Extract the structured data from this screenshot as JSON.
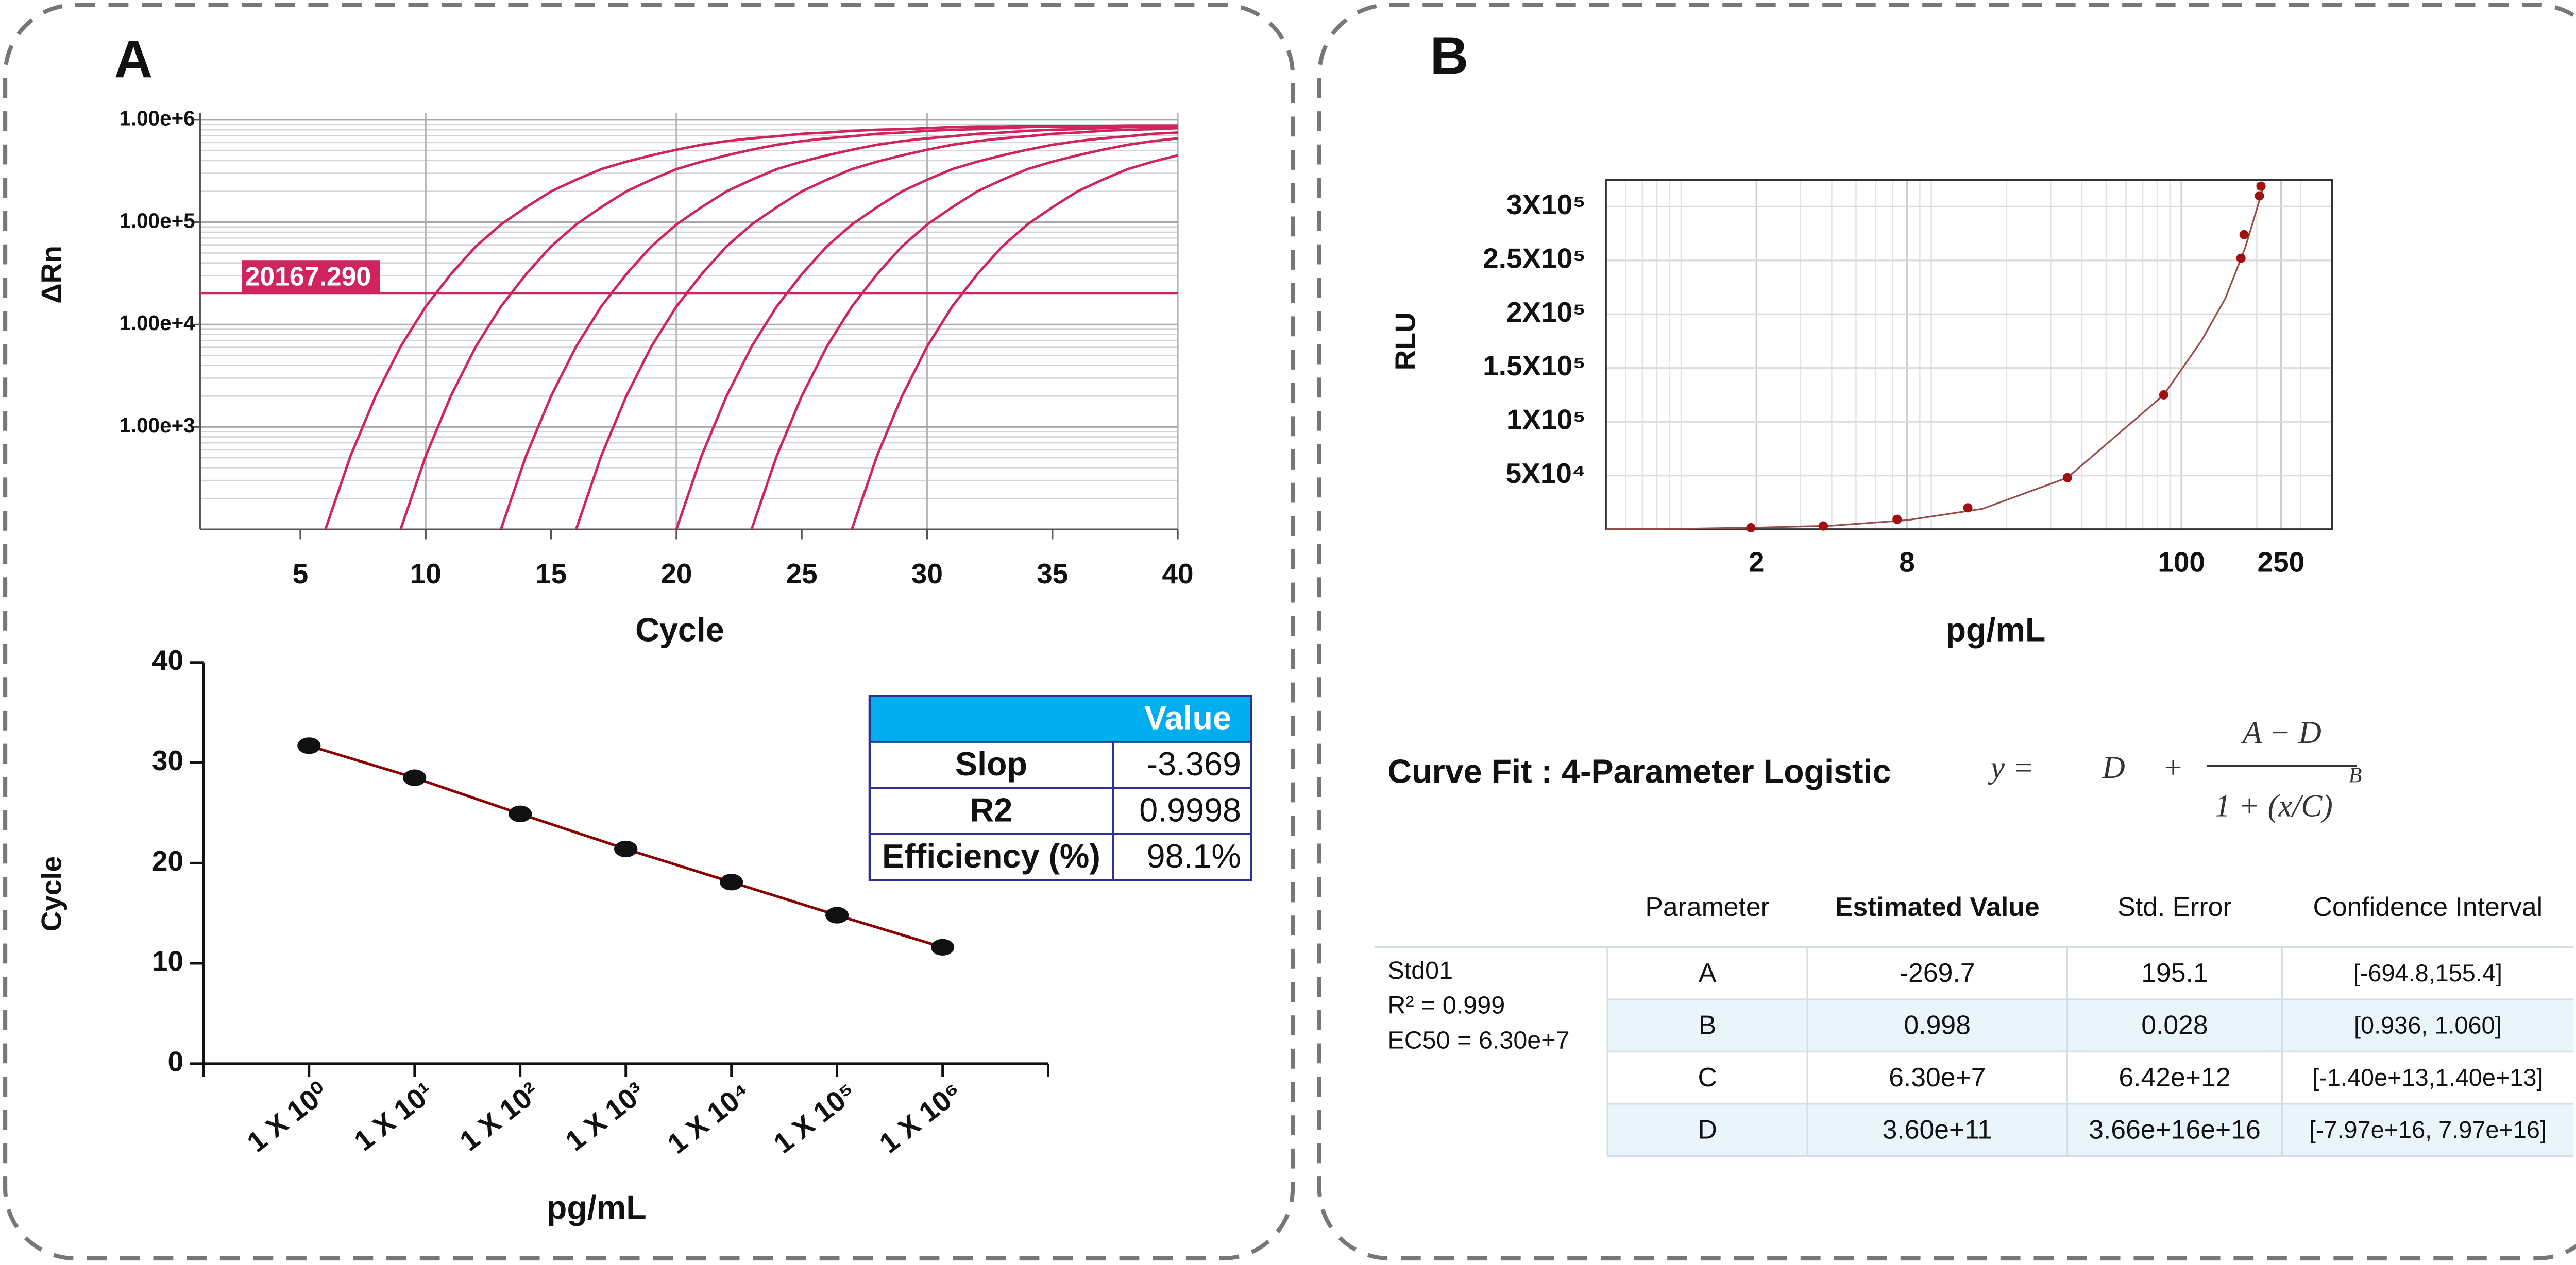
{
  "panels": [
    "A",
    "B"
  ],
  "chart_data": [
    {
      "type": "line",
      "y_label": "ΔRn",
      "x_label": "Cycle",
      "log_y": true,
      "grid": true,
      "x": [
        1,
        2,
        3,
        4,
        5,
        6,
        7,
        8,
        9,
        10,
        11,
        12,
        13,
        14,
        15,
        16,
        17,
        18,
        19,
        20,
        21,
        22,
        23,
        24,
        25,
        26,
        27,
        28,
        29,
        30,
        31,
        32,
        33,
        34,
        35,
        36,
        37,
        38,
        39,
        40
      ],
      "xlim": [
        1,
        40
      ],
      "xticks": [
        5,
        10,
        15,
        20,
        25,
        30,
        35,
        40
      ],
      "xgrid": [
        10,
        20,
        30,
        40
      ],
      "ylim": [
        100,
        1000000
      ],
      "yticks": [
        {
          "value": 1000,
          "label": "1.00e+3"
        },
        {
          "value": 10000,
          "label": "1.00e+4"
        },
        {
          "value": 100000,
          "label": "1.00e+5"
        },
        {
          "value": 1000000,
          "label": "1.00e+6"
        }
      ],
      "yminor_ticks": [
        200,
        300,
        400,
        500,
        600,
        700,
        800,
        900,
        2000,
        3000,
        4000,
        5000,
        6000,
        7000,
        8000,
        9000,
        20000,
        30000,
        40000,
        50000,
        60000,
        70000,
        80000,
        90000,
        200000,
        300000,
        400000,
        500000,
        600000,
        700000,
        800000,
        900000
      ],
      "threshold": {
        "value": 20167.29,
        "label": "20167.290"
      },
      "threshold_color": "#d0245e",
      "series": [
        {
          "color": "#d0245e",
          "values": [
            null,
            null,
            null,
            null,
            null,
            100,
            520,
            2000,
            6100,
            15000,
            31000,
            58000,
            95000,
            140000,
            200000,
            260000,
            330000,
            390000,
            450000,
            510000,
            570000,
            620000,
            660000,
            690000,
            730000,
            750000,
            780000,
            800000,
            810000,
            830000,
            850000,
            860000,
            860000,
            870000,
            870000,
            870000,
            870000,
            880000,
            880000,
            880000
          ]
        },
        {
          "color": "#d0245e",
          "values": [
            null,
            null,
            null,
            null,
            null,
            null,
            null,
            null,
            100,
            520,
            2000,
            6100,
            15000,
            31000,
            58000,
            95000,
            140000,
            200000,
            260000,
            330000,
            390000,
            450000,
            510000,
            570000,
            620000,
            660000,
            690000,
            730000,
            750000,
            780000,
            800000,
            810000,
            830000,
            850000,
            860000,
            860000,
            870000,
            870000,
            870000,
            870000
          ]
        },
        {
          "color": "#d0245e",
          "values": [
            null,
            null,
            null,
            null,
            null,
            null,
            null,
            null,
            null,
            null,
            null,
            null,
            100,
            520,
            2000,
            6100,
            15000,
            31000,
            58000,
            95000,
            140000,
            200000,
            260000,
            330000,
            390000,
            450000,
            510000,
            570000,
            620000,
            660000,
            690000,
            730000,
            750000,
            780000,
            800000,
            810000,
            830000,
            850000,
            860000,
            860000
          ]
        },
        {
          "color": "#d0245e",
          "values": [
            null,
            null,
            null,
            null,
            null,
            null,
            null,
            null,
            null,
            null,
            null,
            null,
            null,
            null,
            null,
            100,
            520,
            2000,
            6100,
            15000,
            31000,
            58000,
            95000,
            140000,
            200000,
            260000,
            330000,
            390000,
            450000,
            510000,
            570000,
            620000,
            660000,
            690000,
            730000,
            750000,
            780000,
            800000,
            810000,
            830000
          ]
        },
        {
          "color": "#d0245e",
          "values": [
            null,
            null,
            null,
            null,
            null,
            null,
            null,
            null,
            null,
            null,
            null,
            null,
            null,
            null,
            null,
            null,
            null,
            null,
            null,
            100,
            520,
            2000,
            6100,
            15000,
            31000,
            58000,
            95000,
            140000,
            200000,
            260000,
            330000,
            390000,
            450000,
            510000,
            570000,
            620000,
            660000,
            690000,
            730000,
            750000
          ]
        },
        {
          "color": "#d0245e",
          "values": [
            null,
            null,
            null,
            null,
            null,
            null,
            null,
            null,
            null,
            null,
            null,
            null,
            null,
            null,
            null,
            null,
            null,
            null,
            null,
            null,
            null,
            null,
            100,
            520,
            2000,
            6100,
            15000,
            31000,
            58000,
            95000,
            140000,
            200000,
            260000,
            330000,
            390000,
            450000,
            510000,
            570000,
            620000,
            660000
          ]
        },
        {
          "color": "#d0245e",
          "values": [
            null,
            null,
            null,
            null,
            null,
            null,
            null,
            null,
            null,
            null,
            null,
            null,
            null,
            null,
            null,
            null,
            null,
            null,
            null,
            null,
            null,
            null,
            null,
            null,
            null,
            null,
            100,
            520,
            2000,
            6100,
            15000,
            31000,
            58000,
            95000,
            140000,
            200000,
            260000,
            330000,
            390000,
            450000
          ]
        }
      ]
    },
    {
      "type": "scatter",
      "x_label": "pg/mL",
      "y_label": "Cycle",
      "categories": [
        "1 X 10⁰",
        "1 X 10¹",
        "1 X 10²",
        "1 X 10³",
        "1 X 10⁴",
        "1 X 10⁵",
        "1 X 10⁶"
      ],
      "values": [
        31.7,
        28.5,
        24.9,
        21.4,
        18.1,
        14.8,
        11.6
      ],
      "color": "#111111",
      "line_color": "#8b0000",
      "ylim": [
        0,
        40
      ],
      "yticks": [
        0,
        10,
        20,
        30,
        40
      ],
      "table": {
        "columns": [
          "Value"
        ],
        "rows": [
          [
            "Slop",
            "-3.369"
          ],
          [
            "R2",
            "0.9998"
          ],
          [
            "Efficiency (%)",
            "98.1%"
          ]
        ]
      }
    },
    {
      "type": "scatter",
      "x_label": "pg/mL",
      "y_label": "RLU",
      "log_x": true,
      "grid": true,
      "xlim": [
        0.5,
        400
      ],
      "xticks": [
        2,
        8,
        100,
        250
      ],
      "xminor_ticks": [
        0.6,
        0.7,
        0.8,
        0.9,
        1,
        3,
        4,
        5,
        6,
        7,
        9,
        10,
        20,
        30,
        40,
        50,
        60,
        70,
        80,
        90,
        200,
        300
      ],
      "ylim": [
        0,
        325000
      ],
      "yticks": [
        {
          "value": 50000,
          "label": "5X10⁴"
        },
        {
          "value": 100000,
          "label": "1X10⁵"
        },
        {
          "value": 150000,
          "label": "1.5X10⁵"
        },
        {
          "value": 200000,
          "label": "2X10⁵"
        },
        {
          "value": 250000,
          "label": "2.5X10⁵"
        },
        {
          "value": 300000,
          "label": "3X10⁵"
        }
      ],
      "series": [
        {
          "color": "#a01010",
          "x": [
            1.9,
            3.7,
            7.3,
            14,
            35,
            85,
            173,
            178,
            205,
            208
          ],
          "values": [
            1500,
            3100,
            9300,
            20000,
            48000,
            125000,
            252000,
            274000,
            310000,
            319000
          ]
        }
      ],
      "fit": {
        "color": "#9b4a4a",
        "x": [
          0.5,
          1,
          2,
          4,
          8,
          16,
          35,
          85,
          120,
          150,
          180,
          215
        ],
        "values": [
          0,
          500,
          1600,
          3400,
          8500,
          19000,
          48000,
          125000,
          175000,
          215000,
          262000,
          322000
        ]
      }
    }
  ],
  "curve_fit": {
    "title": "Curve Fit : 4-Parameter Logistic",
    "equation": {
      "left": "y =",
      "d": "D",
      "plus": "+",
      "numerator": "A − D",
      "denominator": "1 + (x/C)",
      "exponent": "B"
    },
    "table": {
      "columns": [
        "Parameter",
        "Estimated Value",
        "Std. Error",
        "Confidence Interval"
      ],
      "sample": [
        "Std01",
        "R² = 0.999",
        "EC50 = 6.30e+7"
      ],
      "rows": [
        [
          "A",
          "-269.7",
          "195.1",
          "[-694.8,155.4]"
        ],
        [
          "B",
          "0.998",
          "0.028",
          "[0.936, 1.060]"
        ],
        [
          "C",
          "6.30e+7",
          "6.42e+12",
          "[-1.40e+13,1.40e+13]"
        ],
        [
          "D",
          "3.60e+11",
          "3.66e+16e+16",
          "[-7.97e+16, 7.97e+16]"
        ]
      ]
    }
  }
}
